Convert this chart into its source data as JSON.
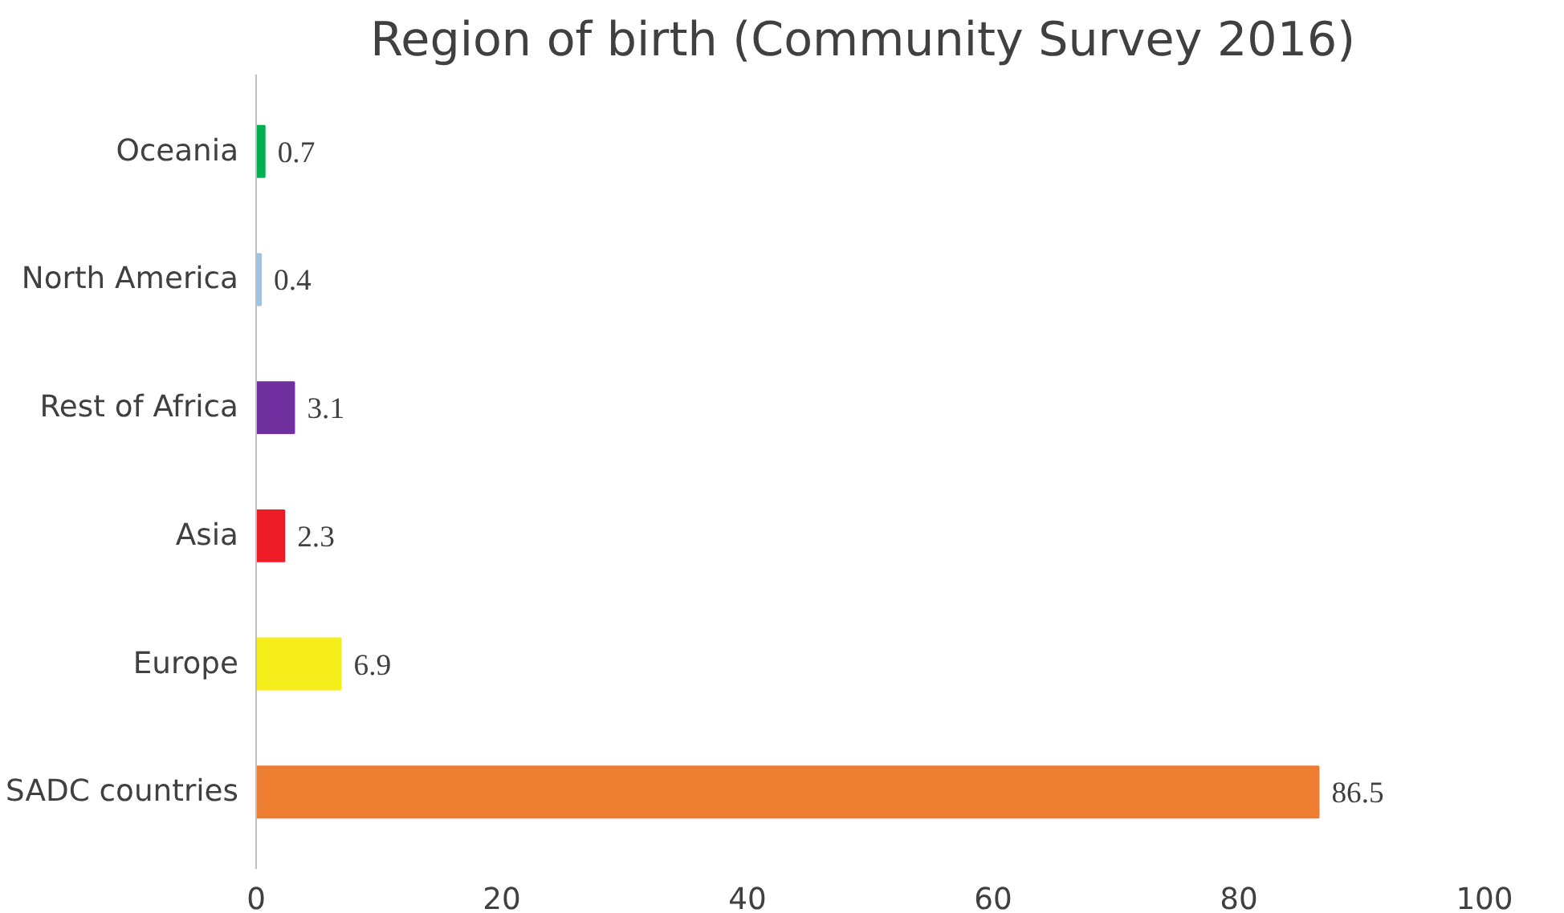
{
  "chart_data": {
    "type": "bar",
    "orientation": "horizontal",
    "title": "Region of birth (Community  Survey 2016)",
    "categories": [
      "Oceania",
      "North America",
      "Rest of Africa",
      "Asia",
      "Europe",
      "SADC countries"
    ],
    "values": [
      0.7,
      0.4,
      3.1,
      2.3,
      6.9,
      86.5
    ],
    "colors": [
      "#00b050",
      "#9dc3e6",
      "#7030a0",
      "#ee1c25",
      "#f5ee1b",
      "#ed7d31"
    ],
    "xlim": [
      0,
      100
    ],
    "xticks": [
      0,
      20,
      40,
      60,
      80,
      100
    ],
    "grid": false,
    "data_labels": true
  }
}
